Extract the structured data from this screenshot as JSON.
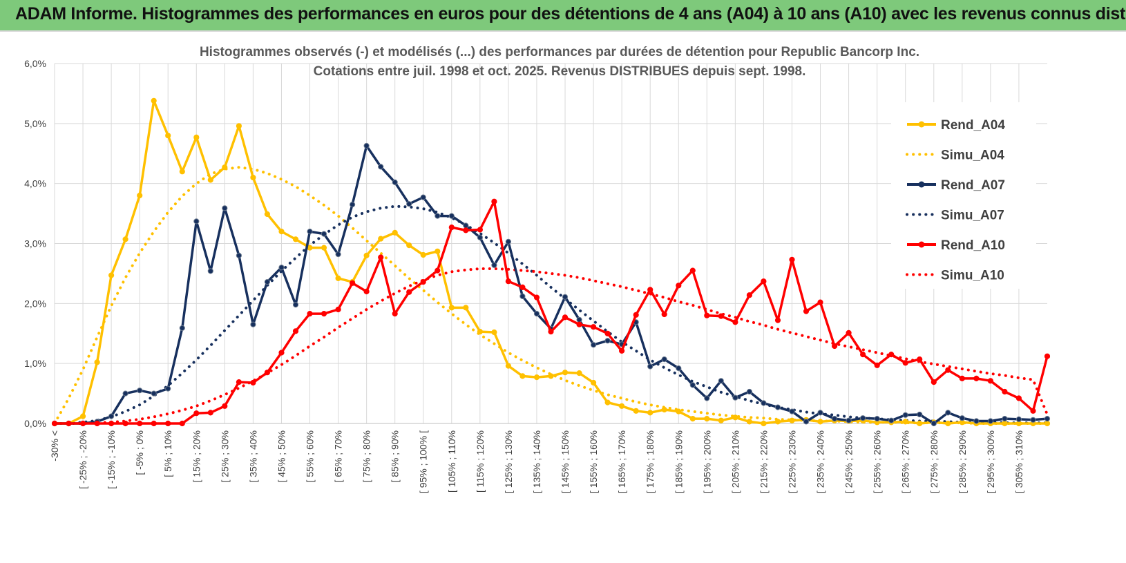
{
  "page": {
    "title": "ADAM Informe. Histogrammes des performances en euros pour des détentions de 4 ans (A04) à 10 ans (A10) avec les revenus connus distribués"
  },
  "chart_data": {
    "type": "line",
    "title": "Histogrammes observés (-) et modélisés (...) des performances par durées de détention pour Republic Bancorp Inc.",
    "subtitle": "Cotations entre juil. 1998 et oct. 2025. Revenus DISTRIBUES depuis sept. 1998.",
    "xlabel": "",
    "ylabel": "",
    "ylim": [
      0,
      6
    ],
    "y_ticks": [
      "0,0%",
      "1,0%",
      "2,0%",
      "3,0%",
      "4,0%",
      "5,0%",
      "6,0%"
    ],
    "y_unit": "%",
    "grid": true,
    "legend_position": "right",
    "x_labels": [
      "-30% <",
      "[ -25% ; -20%",
      "[ -15% ; -10%",
      "[ -5% ; 0%",
      "[ 5% ; 10%",
      "[ 15% ; 20%",
      "[ 25% ; 30%",
      "[ 35% ; 40%",
      "[ 45% ; 50%",
      "[ 55% ; 60%",
      "[ 65% ; 70%",
      "[ 75% ; 80%",
      "[ 85% ; 90%",
      "[ 95% ; 100% [",
      "[ 105% ; 110%",
      "[ 115% ; 120%",
      "[ 125% ; 130%",
      "[ 135% ; 140%",
      "[ 145% ; 150%",
      "[ 155% ; 160%",
      "[ 165% ; 170%",
      "[ 175% ; 180%",
      "[ 185% ; 190%",
      "[ 195% ; 200%",
      "[ 205% ; 210%",
      "[ 215% ; 220%",
      "[ 225% ; 230%",
      "[ 235% ; 240%",
      "[ 245% ; 250%",
      "[ 255% ; 260%",
      "[ 265% ; 270%",
      "[ 275% ; 280%",
      "[ 285% ; 290%",
      "[ 295% ; 300%",
      "[ 305% ; 310%"
    ],
    "series": [
      {
        "name": "Rend_A04",
        "style": "solid",
        "color": "#ffc000",
        "values": [
          0.0,
          0.0,
          0.12,
          1.02,
          2.47,
          3.07,
          3.8,
          5.38,
          4.8,
          4.2,
          4.77,
          4.06,
          4.27,
          4.96,
          4.1,
          3.49,
          3.2,
          3.07,
          2.93,
          2.93,
          2.42,
          2.36,
          2.8,
          3.08,
          3.18,
          2.97,
          2.81,
          2.87,
          1.93,
          1.93,
          1.53,
          1.52,
          0.96,
          0.79,
          0.77,
          0.79,
          0.85,
          0.84,
          0.68,
          0.35,
          0.29,
          0.21,
          0.18,
          0.23,
          0.2,
          0.08,
          0.08,
          0.05,
          0.1,
          0.03,
          0.0,
          0.03,
          0.05,
          0.06,
          0.03,
          0.05,
          0.04,
          0.05,
          0.02,
          0.02,
          0.03,
          0.0,
          0.02,
          0.0,
          0.02,
          0.0,
          0.0,
          0.0,
          0.0,
          0.0,
          0.0
        ]
      },
      {
        "name": "Simu_A04",
        "style": "dotted",
        "color": "#ffc000",
        "values": [
          0.0,
          0.42,
          0.9,
          1.44,
          1.96,
          2.43,
          2.84,
          3.2,
          3.52,
          3.79,
          4.0,
          4.16,
          4.24,
          4.27,
          4.24,
          4.17,
          4.07,
          3.95,
          3.8,
          3.64,
          3.46,
          3.26,
          3.05,
          2.84,
          2.63,
          2.42,
          2.22,
          2.02,
          1.83,
          1.65,
          1.48,
          1.33,
          1.18,
          1.05,
          0.93,
          0.82,
          0.72,
          0.63,
          0.55,
          0.48,
          0.42,
          0.36,
          0.31,
          0.27,
          0.23,
          0.2,
          0.17,
          0.14,
          0.12,
          0.1,
          0.09,
          0.07,
          0.06,
          0.05,
          0.04,
          0.04,
          0.03,
          0.02,
          0.02,
          0.02,
          0.01,
          0.01,
          0.01,
          0.01,
          0.01,
          0.0,
          0.0,
          0.0,
          0.0,
          0.0,
          0.0
        ]
      },
      {
        "name": "Rend_A07",
        "style": "solid",
        "color": "#17305e",
        "values": [
          0.0,
          0.0,
          0.0,
          0.03,
          0.12,
          0.5,
          0.55,
          0.5,
          0.58,
          1.59,
          3.37,
          2.54,
          3.59,
          2.8,
          1.65,
          2.36,
          2.6,
          1.98,
          3.2,
          3.16,
          2.82,
          3.65,
          4.63,
          4.28,
          4.02,
          3.66,
          3.77,
          3.46,
          3.46,
          3.3,
          3.1,
          2.64,
          3.03,
          2.12,
          1.83,
          1.58,
          2.11,
          1.73,
          1.31,
          1.38,
          1.32,
          1.69,
          0.95,
          1.07,
          0.92,
          0.64,
          0.42,
          0.71,
          0.43,
          0.53,
          0.34,
          0.27,
          0.2,
          0.03,
          0.18,
          0.08,
          0.05,
          0.09,
          0.08,
          0.05,
          0.14,
          0.15,
          0.0,
          0.18,
          0.09,
          0.04,
          0.04,
          0.08,
          0.07,
          0.06,
          0.08
        ]
      },
      {
        "name": "Simu_A07",
        "style": "dotted",
        "color": "#17305e",
        "values": [
          0.0,
          0.0,
          0.02,
          0.05,
          0.11,
          0.2,
          0.31,
          0.46,
          0.63,
          0.84,
          1.06,
          1.3,
          1.55,
          1.8,
          2.05,
          2.3,
          2.54,
          2.76,
          2.97,
          3.15,
          3.31,
          3.44,
          3.53,
          3.59,
          3.62,
          3.61,
          3.58,
          3.52,
          3.43,
          3.31,
          3.17,
          3.01,
          2.84,
          2.66,
          2.47,
          2.27,
          2.08,
          1.89,
          1.71,
          1.53,
          1.36,
          1.21,
          1.06,
          0.93,
          0.81,
          0.7,
          0.61,
          0.52,
          0.45,
          0.38,
          0.32,
          0.27,
          0.23,
          0.19,
          0.16,
          0.14,
          0.11,
          0.09,
          0.08,
          0.06,
          0.05,
          0.04,
          0.04,
          0.03,
          0.02,
          0.02,
          0.02,
          0.01,
          0.01,
          0.01,
          0.01
        ]
      },
      {
        "name": "Rend_A10",
        "style": "solid",
        "color": "#ff0000",
        "values": [
          0.0,
          0.0,
          0.0,
          0.0,
          0.0,
          0.0,
          0.0,
          0.0,
          0.0,
          0.0,
          0.17,
          0.18,
          0.29,
          0.69,
          0.68,
          0.85,
          1.18,
          1.54,
          1.83,
          1.83,
          1.9,
          2.34,
          2.2,
          2.77,
          1.83,
          2.19,
          2.36,
          2.55,
          3.27,
          3.22,
          3.23,
          3.7,
          2.37,
          2.27,
          2.1,
          1.53,
          1.77,
          1.65,
          1.61,
          1.5,
          1.21,
          1.81,
          2.23,
          1.82,
          2.3,
          2.55,
          1.8,
          1.79,
          1.69,
          2.14,
          2.37,
          1.72,
          2.73,
          1.87,
          2.02,
          1.29,
          1.51,
          1.15,
          0.97,
          1.15,
          1.01,
          1.07,
          0.69,
          0.89,
          0.75,
          0.75,
          0.71,
          0.53,
          0.42,
          0.21,
          1.12
        ]
      },
      {
        "name": "Simu_A10",
        "style": "dotted",
        "color": "#ff0000",
        "values": [
          0.0,
          0.0,
          0.0,
          0.01,
          0.02,
          0.04,
          0.07,
          0.11,
          0.16,
          0.22,
          0.29,
          0.38,
          0.48,
          0.59,
          0.71,
          0.84,
          0.98,
          1.13,
          1.29,
          1.44,
          1.6,
          1.75,
          1.9,
          2.04,
          2.17,
          2.29,
          2.39,
          2.47,
          2.53,
          2.56,
          2.58,
          2.58,
          2.57,
          2.55,
          2.53,
          2.5,
          2.47,
          2.43,
          2.38,
          2.33,
          2.28,
          2.22,
          2.16,
          2.1,
          2.03,
          1.97,
          1.9,
          1.83,
          1.77,
          1.7,
          1.64,
          1.57,
          1.51,
          1.45,
          1.39,
          1.33,
          1.28,
          1.23,
          1.18,
          1.13,
          1.08,
          1.03,
          0.99,
          0.95,
          0.91,
          0.87,
          0.83,
          0.8,
          0.76,
          0.73,
          0.15
        ]
      }
    ]
  }
}
